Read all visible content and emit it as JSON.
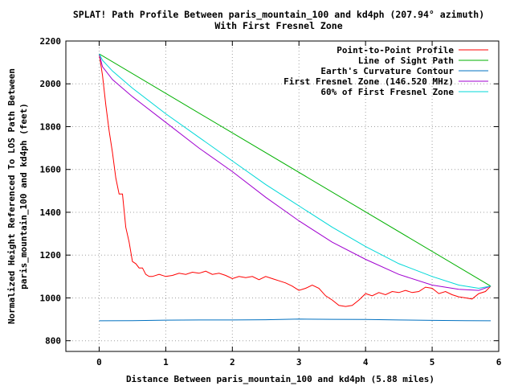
{
  "chart_data": {
    "type": "line",
    "title_line1": "SPLAT! Path Profile Between paris_mountain_100 and kd4ph (207.94° azimuth)",
    "title_line2": "With First Fresnel Zone",
    "xlabel": "Distance Between paris_mountain_100 and kd4ph (5.88 miles)",
    "ylabel_line1": "Normalized Height Referenced To LOS Path Between",
    "ylabel_line2": "paris_mountain_100 and kd4ph (feet)",
    "xlim": [
      -0.5,
      6
    ],
    "ylim": [
      750,
      2200
    ],
    "x_ticks": [
      "0",
      "1",
      "2",
      "3",
      "4",
      "5",
      "6"
    ],
    "y_ticks": [
      "800",
      "1000",
      "1200",
      "1400",
      "1600",
      "1800",
      "2000",
      "2200"
    ],
    "x_tick_values": [
      0,
      1,
      2,
      3,
      4,
      5,
      6
    ],
    "y_tick_values": [
      800,
      1000,
      1200,
      1400,
      1600,
      1800,
      2000,
      2200
    ],
    "grid": true,
    "legend_position": "top-right",
    "series": [
      {
        "name": "Point-to-Point Profile",
        "color": "#ff0000",
        "points": [
          [
            0,
            2140
          ],
          [
            0.05,
            2040
          ],
          [
            0.1,
            1900
          ],
          [
            0.15,
            1780
          ],
          [
            0.2,
            1680
          ],
          [
            0.25,
            1560
          ],
          [
            0.3,
            1485
          ],
          [
            0.35,
            1485
          ],
          [
            0.4,
            1330
          ],
          [
            0.45,
            1260
          ],
          [
            0.5,
            1170
          ],
          [
            0.55,
            1160
          ],
          [
            0.6,
            1140
          ],
          [
            0.65,
            1140
          ],
          [
            0.7,
            1110
          ],
          [
            0.75,
            1100
          ],
          [
            0.8,
            1100
          ],
          [
            0.9,
            1110
          ],
          [
            1.0,
            1100
          ],
          [
            1.1,
            1105
          ],
          [
            1.2,
            1115
          ],
          [
            1.3,
            1110
          ],
          [
            1.4,
            1120
          ],
          [
            1.5,
            1115
          ],
          [
            1.6,
            1125
          ],
          [
            1.7,
            1110
          ],
          [
            1.8,
            1115
          ],
          [
            1.9,
            1105
          ],
          [
            2.0,
            1090
          ],
          [
            2.1,
            1100
          ],
          [
            2.2,
            1095
          ],
          [
            2.3,
            1100
          ],
          [
            2.4,
            1085
          ],
          [
            2.5,
            1100
          ],
          [
            2.6,
            1090
          ],
          [
            2.7,
            1080
          ],
          [
            2.8,
            1070
          ],
          [
            2.9,
            1055
          ],
          [
            3.0,
            1035
          ],
          [
            3.1,
            1045
          ],
          [
            3.2,
            1060
          ],
          [
            3.3,
            1045
          ],
          [
            3.4,
            1010
          ],
          [
            3.5,
            990
          ],
          [
            3.6,
            965
          ],
          [
            3.7,
            960
          ],
          [
            3.8,
            965
          ],
          [
            3.9,
            990
          ],
          [
            4.0,
            1020
          ],
          [
            4.1,
            1010
          ],
          [
            4.2,
            1025
          ],
          [
            4.3,
            1015
          ],
          [
            4.4,
            1030
          ],
          [
            4.5,
            1025
          ],
          [
            4.6,
            1035
          ],
          [
            4.7,
            1025
          ],
          [
            4.8,
            1030
          ],
          [
            4.9,
            1050
          ],
          [
            5.0,
            1045
          ],
          [
            5.1,
            1020
          ],
          [
            5.2,
            1030
          ],
          [
            5.3,
            1015
          ],
          [
            5.4,
            1005
          ],
          [
            5.5,
            1000
          ],
          [
            5.6,
            995
          ],
          [
            5.7,
            1020
          ],
          [
            5.8,
            1030
          ],
          [
            5.88,
            1055
          ]
        ]
      },
      {
        "name": "Line of Sight Path",
        "color": "#00b000",
        "points": [
          [
            0,
            2140
          ],
          [
            5.88,
            1055
          ]
        ]
      },
      {
        "name": "Earth's Curvature Contour",
        "color": "#0070c0",
        "points": [
          [
            0,
            893
          ],
          [
            0.5,
            894
          ],
          [
            1.0,
            896
          ],
          [
            1.5,
            897
          ],
          [
            2.0,
            897
          ],
          [
            2.5,
            898
          ],
          [
            3.0,
            901
          ],
          [
            3.5,
            900
          ],
          [
            4.0,
            899
          ],
          [
            4.5,
            897
          ],
          [
            5.0,
            895
          ],
          [
            5.5,
            894
          ],
          [
            5.88,
            893
          ]
        ]
      },
      {
        "name": "First Fresnel Zone (146.520 MHz)",
        "color": "#a000d0",
        "points": [
          [
            0,
            2140
          ],
          [
            0.05,
            2080
          ],
          [
            0.2,
            2020
          ],
          [
            0.5,
            1940
          ],
          [
            1.0,
            1820
          ],
          [
            1.5,
            1700
          ],
          [
            2.0,
            1590
          ],
          [
            2.5,
            1470
          ],
          [
            3.0,
            1360
          ],
          [
            3.5,
            1260
          ],
          [
            4.0,
            1180
          ],
          [
            4.5,
            1110
          ],
          [
            5.0,
            1060
          ],
          [
            5.4,
            1040
          ],
          [
            5.7,
            1035
          ],
          [
            5.88,
            1055
          ]
        ]
      },
      {
        "name": "60% of First Fresnel Zone",
        "color": "#00d8d8",
        "points": [
          [
            0,
            2140
          ],
          [
            0.05,
            2110
          ],
          [
            0.2,
            2060
          ],
          [
            0.5,
            1980
          ],
          [
            1.0,
            1860
          ],
          [
            1.5,
            1750
          ],
          [
            2.0,
            1640
          ],
          [
            2.5,
            1530
          ],
          [
            3.0,
            1430
          ],
          [
            3.5,
            1330
          ],
          [
            4.0,
            1240
          ],
          [
            4.5,
            1160
          ],
          [
            5.0,
            1100
          ],
          [
            5.4,
            1060
          ],
          [
            5.7,
            1045
          ],
          [
            5.88,
            1055
          ]
        ]
      }
    ]
  }
}
